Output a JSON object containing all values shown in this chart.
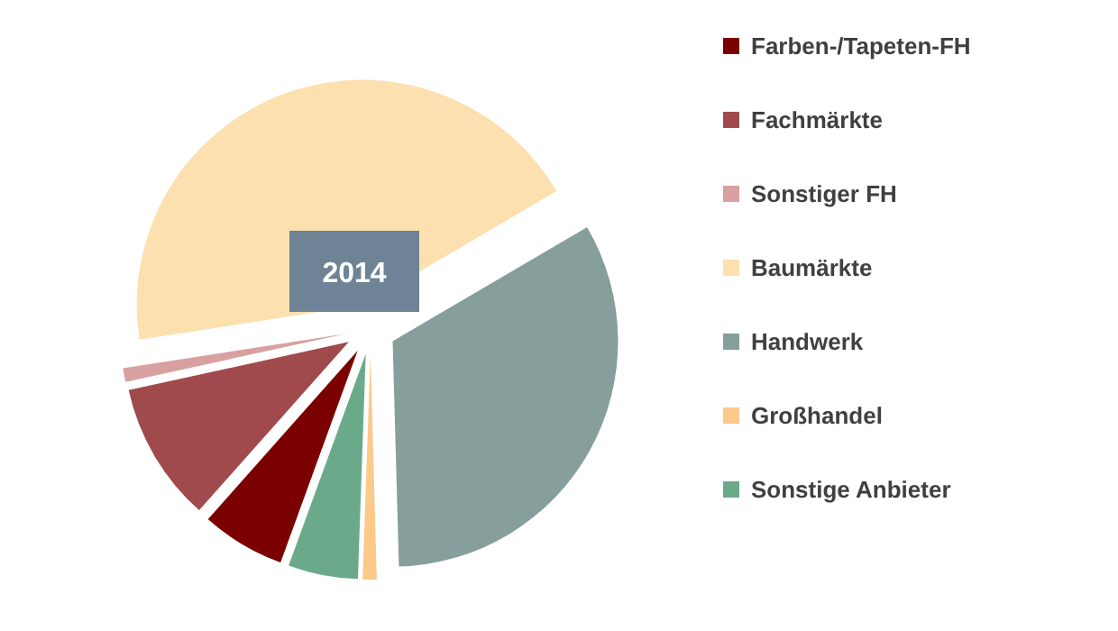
{
  "chart_data": {
    "type": "pie",
    "title": "2014",
    "categories": [
      "Farben-/Tapeten-FH",
      "Fachmärkte",
      "Sonstiger FH",
      "Baumärkte",
      "Handwerk",
      "Großhandel",
      "Sonstige Anbieter"
    ],
    "values": [
      6,
      10,
      1,
      44,
      33,
      1,
      5
    ],
    "colors": [
      "#7b0000",
      "#a04a4e",
      "#d9a0a0",
      "#fde0b0",
      "#869e9c",
      "#fbc98a",
      "#6aaa8a"
    ],
    "legend": "right"
  }
}
